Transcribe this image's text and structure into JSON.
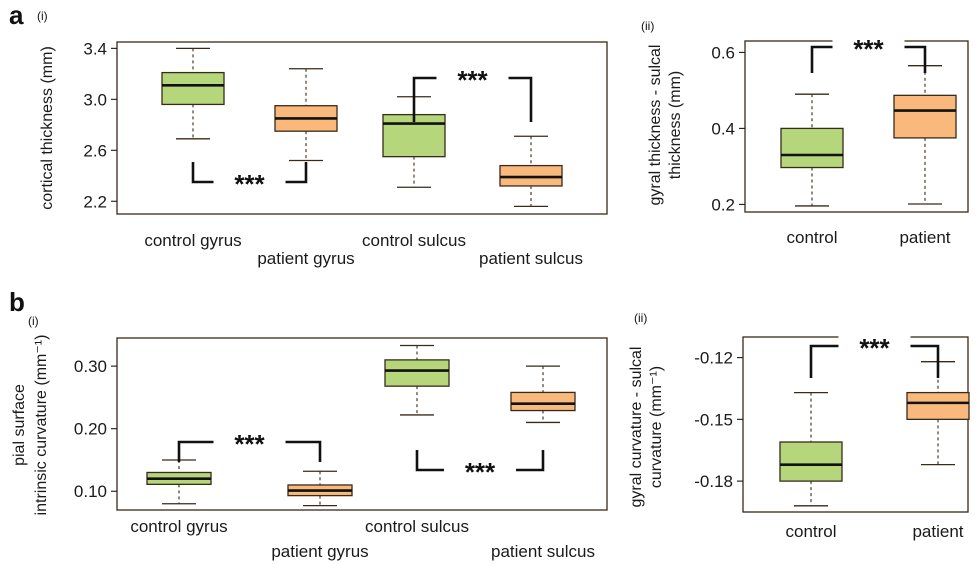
{
  "colors": {
    "control": "#b5d67a",
    "patient": "#f9b97d"
  },
  "figure": {
    "panel_a": "a",
    "panel_b": "b",
    "sub_i": "(i)",
    "sub_ii": "(ii)",
    "significance": "***"
  },
  "chart_data": [
    {
      "id": "a-i",
      "type": "box",
      "ylabel": "cortical thickness (mm)",
      "ylim": [
        2.1,
        3.45
      ],
      "yticks": [
        2.2,
        2.6,
        3.0,
        3.4
      ],
      "ytick_labels": [
        "2.2",
        "2.6",
        "3.0",
        "3.4"
      ],
      "categories": [
        "control gyrus",
        "patient gyrus",
        "control sulcus",
        "patient sulcus"
      ],
      "groups": [
        "control",
        "patient",
        "control",
        "patient"
      ],
      "boxes": [
        {
          "whisker_low": 2.69,
          "q1": 2.96,
          "median": 3.11,
          "q3": 3.21,
          "whisker_high": 3.4
        },
        {
          "whisker_low": 2.52,
          "q1": 2.75,
          "median": 2.85,
          "q3": 2.95,
          "whisker_high": 3.24
        },
        {
          "whisker_low": 2.31,
          "q1": 2.55,
          "median": 2.81,
          "q3": 2.88,
          "whisker_high": 3.02
        },
        {
          "whisker_low": 2.16,
          "q1": 2.32,
          "median": 2.39,
          "q3": 2.48,
          "whisker_high": 2.71
        }
      ],
      "comparisons": [
        {
          "pair": [
            0,
            1
          ],
          "label": "***",
          "position": "below"
        },
        {
          "pair": [
            2,
            3
          ],
          "label": "***",
          "position": "above"
        }
      ]
    },
    {
      "id": "a-ii",
      "type": "box",
      "ylabel_line1": "gyral thickness - sulcal",
      "ylabel_line2": "thickness (mm)",
      "ylim": [
        0.18,
        0.63
      ],
      "yticks": [
        0.2,
        0.4,
        0.6
      ],
      "ytick_labels": [
        "0.2",
        "0.4",
        "0.6"
      ],
      "categories": [
        "control",
        "patient"
      ],
      "groups": [
        "control",
        "patient"
      ],
      "boxes": [
        {
          "whisker_low": 0.196,
          "q1": 0.297,
          "median": 0.33,
          "q3": 0.4,
          "whisker_high": 0.49
        },
        {
          "whisker_low": 0.201,
          "q1": 0.375,
          "median": 0.447,
          "q3": 0.487,
          "whisker_high": 0.565
        }
      ],
      "comparisons": [
        {
          "pair": [
            0,
            1
          ],
          "label": "***",
          "position": "above"
        }
      ]
    },
    {
      "id": "b-i",
      "type": "box",
      "ylabel_line1": "pial surface",
      "ylabel_line2": "intrinsic curvature (mm⁻¹)",
      "ylim": [
        0.07,
        0.345
      ],
      "yticks": [
        0.1,
        0.2,
        0.3
      ],
      "ytick_labels": [
        "0.10",
        "0.20",
        "0.30"
      ],
      "categories": [
        "control gyrus",
        "patient gyrus",
        "control sulcus",
        "patient sulcus"
      ],
      "groups": [
        "control",
        "patient",
        "control",
        "patient"
      ],
      "boxes": [
        {
          "whisker_low": 0.08,
          "q1": 0.111,
          "median": 0.12,
          "q3": 0.13,
          "whisker_high": 0.15
        },
        {
          "whisker_low": 0.077,
          "q1": 0.093,
          "median": 0.101,
          "q3": 0.11,
          "whisker_high": 0.132
        },
        {
          "whisker_low": 0.222,
          "q1": 0.268,
          "median": 0.293,
          "q3": 0.31,
          "whisker_high": 0.333
        },
        {
          "whisker_low": 0.21,
          "q1": 0.229,
          "median": 0.24,
          "q3": 0.258,
          "whisker_high": 0.3
        }
      ],
      "comparisons": [
        {
          "pair": [
            0,
            1
          ],
          "label": "***",
          "position": "above"
        },
        {
          "pair": [
            2,
            3
          ],
          "label": "***",
          "position": "below"
        }
      ]
    },
    {
      "id": "b-ii",
      "type": "box",
      "ylabel_line1": "gyral curvature - sulcal",
      "ylabel_line2": "curvature (mm⁻¹)",
      "ylim": [
        -0.195,
        -0.11
      ],
      "yticks": [
        -0.18,
        -0.15,
        -0.12
      ],
      "ytick_labels": [
        "-0.18",
        "-0.15",
        "-0.12"
      ],
      "categories": [
        "control",
        "patient"
      ],
      "groups": [
        "control",
        "patient"
      ],
      "boxes": [
        {
          "whisker_low": -0.192,
          "q1": -0.18,
          "median": -0.172,
          "q3": -0.161,
          "whisker_high": -0.137
        },
        {
          "whisker_low": -0.172,
          "q1": -0.15,
          "median": -0.142,
          "q3": -0.137,
          "whisker_high": -0.122
        }
      ],
      "comparisons": [
        {
          "pair": [
            0,
            1
          ],
          "label": "***",
          "position": "above"
        }
      ]
    }
  ]
}
